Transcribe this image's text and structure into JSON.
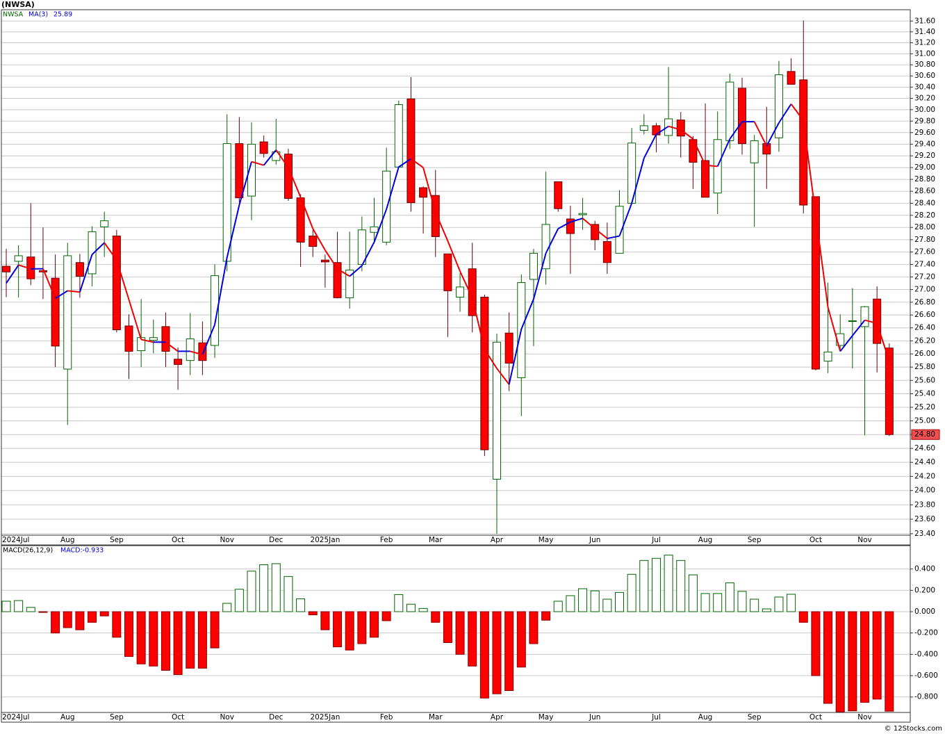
{
  "footer": "© 12Stocks.com",
  "chart_data": [
    {
      "type": "candlestick",
      "title": "(NWSA)",
      "categories": [
        "2024Jul",
        null,
        null,
        null,
        null,
        "Aug",
        null,
        null,
        null,
        "Sep",
        null,
        null,
        null,
        null,
        "Oct",
        null,
        null,
        null,
        "Nov",
        null,
        null,
        null,
        "Dec",
        null,
        null,
        null,
        "2025Jan",
        null,
        null,
        null,
        null,
        "Feb",
        null,
        null,
        null,
        "Mar",
        null,
        null,
        null,
        null,
        "Apr",
        null,
        null,
        null,
        "May",
        null,
        null,
        null,
        "Jun",
        null,
        null,
        null,
        null,
        "Jul",
        null,
        null,
        null,
        "Aug",
        null,
        null,
        null,
        "Sep",
        null,
        null,
        null,
        null,
        "Oct",
        null,
        null,
        null,
        "Nov",
        null,
        null
      ],
      "series": [
        {
          "name": "NWSA",
          "up_color": "#006400",
          "down_color": "#ff0000",
          "open": [
            27.37,
            27.45,
            27.52,
            27.3,
            27.18,
            25.77,
            27.43,
            27.25,
            28.01,
            27.86,
            26.43,
            26.05,
            26.21,
            26.42,
            25.92,
            25.9,
            26.17,
            26.13,
            27.45,
            29.41,
            28.52,
            29.44,
            29.12,
            29.23,
            28.49,
            27.86,
            27.47,
            27.43,
            26.87,
            27.4,
            27.92,
            27.76,
            29.01,
            30.19,
            28.66,
            28.53,
            27.57,
            26.88,
            27.33,
            26.88,
            24.16,
            26.32,
            25.64,
            27.16,
            27.33,
            28.76,
            28.14,
            28.21,
            28.05,
            27.77,
            27.58,
            28.4,
            29.64,
            29.72,
            29.55,
            29.82,
            29.48,
            29.12,
            28.57,
            29.46,
            30.38,
            29.08,
            29.41,
            29.51,
            30.68,
            30.53,
            28.51,
            25.89,
            26.13,
            26.5,
            26.42,
            26.85,
            26.09
          ],
          "high": [
            27.65,
            27.71,
            28.4,
            28.0,
            27.56,
            27.75,
            27.57,
            28.02,
            28.26,
            27.96,
            26.61,
            26.85,
            26.53,
            26.64,
            26.1,
            26.63,
            26.5,
            27.4,
            29.92,
            29.87,
            29.78,
            29.55,
            29.84,
            29.32,
            28.55,
            27.96,
            27.56,
            27.93,
            27.93,
            28.18,
            28.49,
            29.34,
            30.16,
            30.58,
            28.68,
            28.96,
            27.57,
            27.26,
            27.75,
            26.92,
            26.31,
            26.64,
            27.24,
            27.65,
            28.93,
            28.76,
            28.36,
            28.49,
            28.11,
            28.08,
            28.62,
            29.68,
            29.92,
            29.77,
            30.76,
            29.96,
            29.54,
            30.11,
            29.97,
            30.64,
            30.57,
            29.56,
            30.05,
            30.87,
            30.92,
            31.61,
            28.51,
            27.11,
            26.61,
            27.02,
            26.74,
            27.05,
            26.16
          ],
          "low": [
            26.88,
            26.87,
            27.07,
            26.85,
            25.8,
            24.94,
            26.87,
            27.05,
            27.52,
            26.33,
            25.62,
            25.8,
            26.01,
            25.8,
            25.46,
            25.68,
            25.68,
            25.94,
            27.29,
            28.41,
            28.12,
            29.17,
            29.05,
            28.44,
            27.36,
            27.52,
            27.03,
            26.86,
            26.7,
            27.29,
            27.76,
            27.71,
            29.01,
            28.26,
            27.9,
            27.52,
            26.26,
            26.65,
            26.33,
            24.49,
            23.4,
            25.44,
            25.07,
            26.12,
            27.08,
            28.26,
            27.25,
            27.96,
            27.63,
            27.25,
            27.58,
            28.4,
            29.57,
            29.26,
            29.41,
            29.17,
            28.64,
            28.5,
            28.22,
            29.32,
            29.22,
            28.01,
            28.64,
            29.27,
            30.45,
            28.23,
            25.75,
            25.71,
            26.04,
            25.78,
            24.79,
            25.72,
            24.78
          ],
          "close": [
            27.28,
            27.54,
            27.17,
            27.28,
            26.12,
            27.54,
            27.21,
            27.93,
            28.11,
            26.37,
            26.04,
            26.25,
            26.25,
            26.04,
            25.84,
            26.23,
            25.9,
            27.22,
            29.41,
            28.49,
            29.4,
            29.24,
            29.27,
            28.48,
            27.76,
            27.69,
            27.44,
            26.87,
            27.31,
            27.96,
            28.01,
            28.94,
            30.09,
            28.41,
            28.5,
            27.85,
            26.98,
            27.04,
            26.59,
            24.58,
            26.18,
            25.86,
            27.11,
            27.58,
            28.05,
            28.31,
            27.9,
            28.23,
            27.8,
            27.43,
            28.35,
            29.42,
            29.72,
            29.56,
            29.84,
            29.54,
            29.09,
            28.5,
            29.48,
            30.49,
            29.41,
            29.46,
            29.23,
            30.62,
            30.45,
            28.37,
            25.77,
            26.03,
            26.31,
            26.51,
            26.73,
            26.16,
            24.8
          ]
        },
        {
          "name": "MA(3)",
          "type": "line",
          "up_color": "#0000dd",
          "down_color": "#ee0000",
          "current_label": "25.89",
          "values": [
            27.1,
            27.39,
            27.33,
            27.33,
            26.86,
            26.98,
            26.96,
            27.56,
            27.75,
            27.47,
            26.84,
            26.22,
            26.18,
            26.18,
            26.04,
            26.04,
            25.99,
            26.45,
            27.51,
            28.37,
            29.1,
            29.04,
            29.3,
            29.0,
            28.5,
            27.98,
            27.63,
            27.33,
            27.21,
            27.38,
            27.76,
            28.3,
            29.01,
            29.15,
            29.0,
            28.25,
            27.78,
            27.29,
            26.87,
            26.07,
            25.78,
            25.54,
            26.38,
            26.85,
            27.58,
            27.98,
            28.09,
            28.15,
            27.98,
            27.82,
            27.86,
            28.4,
            29.16,
            29.57,
            29.71,
            29.65,
            29.49,
            29.04,
            29.02,
            29.49,
            29.79,
            29.79,
            29.37,
            29.77,
            30.1,
            29.81,
            28.2,
            26.72,
            26.04,
            26.28,
            26.52,
            26.47,
            25.89
          ]
        }
      ],
      "ylim": [
        23.38,
        31.81
      ],
      "log_scale": true,
      "grid": true,
      "yticks": [
        {
          "value": 23.4,
          "label": "23.40"
        },
        {
          "value": 23.6,
          "label": "23.60"
        },
        {
          "value": 23.8,
          "label": "23.80"
        },
        {
          "value": 24.0,
          "label": "24.00"
        },
        {
          "value": 24.2,
          "label": "24.20"
        },
        {
          "value": 24.4,
          "label": "24.40"
        },
        {
          "value": 24.6,
          "label": "24.60"
        },
        {
          "value": 24.8,
          "label": "24.80"
        },
        {
          "value": 25.0,
          "label": "25.00"
        },
        {
          "value": 25.2,
          "label": "25.20"
        },
        {
          "value": 25.4,
          "label": "25.40"
        },
        {
          "value": 25.6,
          "label": "25.60"
        },
        {
          "value": 25.8,
          "label": "25.80"
        },
        {
          "value": 26.0,
          "label": "26.00"
        },
        {
          "value": 26.2,
          "label": "26.20"
        },
        {
          "value": 26.4,
          "label": "26.40"
        },
        {
          "value": 26.6,
          "label": "26.60"
        },
        {
          "value": 26.8,
          "label": "26.80"
        },
        {
          "value": 27.0,
          "label": "27.00"
        },
        {
          "value": 27.2,
          "label": "27.20"
        },
        {
          "value": 27.4,
          "label": "27.40"
        },
        {
          "value": 27.6,
          "label": "27.60"
        },
        {
          "value": 27.8,
          "label": "27.80"
        },
        {
          "value": 28.0,
          "label": "28.00"
        },
        {
          "value": 28.2,
          "label": "28.20"
        },
        {
          "value": 28.4,
          "label": "28.40"
        },
        {
          "value": 28.6,
          "label": "28.60"
        },
        {
          "value": 28.8,
          "label": "28.80"
        },
        {
          "value": 29.0,
          "label": "29.00"
        },
        {
          "value": 29.2,
          "label": "29.20"
        },
        {
          "value": 29.4,
          "label": "29.40"
        },
        {
          "value": 29.6,
          "label": "29.60"
        },
        {
          "value": 29.8,
          "label": "29.80"
        },
        {
          "value": 30.0,
          "label": "30.00"
        },
        {
          "value": 30.2,
          "label": "30.20"
        },
        {
          "value": 30.4,
          "label": "30.40"
        },
        {
          "value": 30.6,
          "label": "30.60"
        },
        {
          "value": 30.8,
          "label": "30.80"
        },
        {
          "value": 31.0,
          "label": "31.00"
        },
        {
          "value": 31.2,
          "label": "31.20"
        },
        {
          "value": 31.4,
          "label": "31.40"
        },
        {
          "value": 31.6,
          "label": "31.60"
        }
      ],
      "last_label": {
        "value": 24.8,
        "label": "24.80"
      }
    },
    {
      "type": "bar",
      "title": "MACD(26,12,9)",
      "series": [
        {
          "pos_color": "#006400",
          "neg_color": "#ff0000",
          "current_label": "MACD:-0.933",
          "values": [
            0.098,
            0.104,
            0.04,
            -0.007,
            -0.2,
            -0.15,
            -0.17,
            -0.1,
            -0.04,
            -0.24,
            -0.42,
            -0.49,
            -0.51,
            -0.55,
            -0.59,
            -0.53,
            -0.53,
            -0.34,
            0.078,
            0.21,
            0.38,
            0.44,
            0.45,
            0.33,
            0.12,
            -0.03,
            -0.17,
            -0.33,
            -0.36,
            -0.3,
            -0.24,
            -0.085,
            0.16,
            0.07,
            0.03,
            -0.1,
            -0.29,
            -0.4,
            -0.51,
            -0.81,
            -0.77,
            -0.74,
            -0.52,
            -0.3,
            -0.08,
            0.098,
            0.15,
            0.215,
            0.195,
            0.117,
            0.18,
            0.35,
            0.48,
            0.5,
            0.53,
            0.48,
            0.345,
            0.17,
            0.17,
            0.27,
            0.19,
            0.117,
            0.026,
            0.137,
            0.163,
            -0.1,
            -0.6,
            -0.86,
            -0.94,
            -0.93,
            -0.85,
            -0.82,
            -0.933
          ]
        }
      ],
      "ylim": [
        -0.945,
        0.619
      ],
      "grid": true,
      "yticks": [
        {
          "value": 0.4,
          "label": "0.400"
        },
        {
          "value": 0.2,
          "label": "0.200"
        },
        {
          "value": 0,
          "label": "0.000"
        },
        {
          "value": -0.2,
          "label": "-0.200"
        },
        {
          "value": -0.4,
          "label": "-0.400"
        },
        {
          "value": -0.6,
          "label": "-0.600"
        },
        {
          "value": -0.8,
          "label": "-0.800"
        }
      ]
    }
  ]
}
